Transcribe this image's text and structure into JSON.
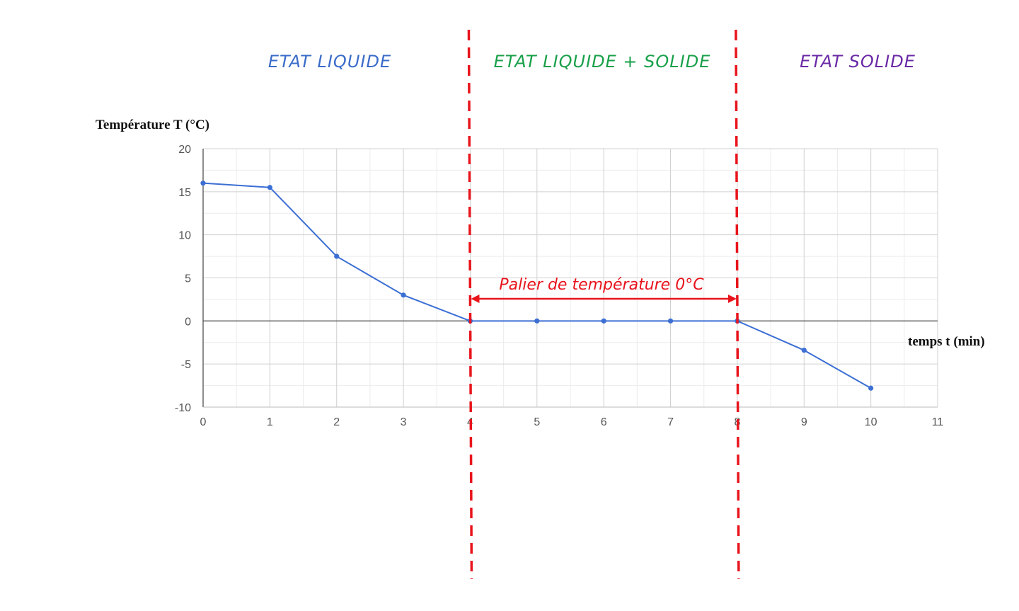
{
  "colors": {
    "series": "#3c6fd4",
    "grid_major": "#d0d0d0",
    "grid_minor": "#ececec",
    "zero_line": "#555555",
    "boundary": "#e8141c",
    "phase_liquid": "#3b6cc9",
    "phase_mix": "#19a04a",
    "phase_solid": "#6a2aa6"
  },
  "phases": {
    "liquid": "ETAT LIQUIDE",
    "mix": "ETAT LIQUIDE + SOLIDE",
    "solid": "ETAT SOLIDE"
  },
  "annotation": {
    "text": "Palier de température 0°C",
    "from_x": 4,
    "to_x": 8
  },
  "boundaries_x": [
    4,
    8
  ],
  "chart_data": {
    "type": "line",
    "title": "",
    "xlabel": "temps t (min)",
    "ylabel": "Température T (°C)",
    "xlim": [
      0,
      11
    ],
    "ylim": [
      -10,
      20
    ],
    "x_ticks": [
      "0",
      "1",
      "2",
      "3",
      "4",
      "5",
      "6",
      "7",
      "8",
      "9",
      "10",
      "11"
    ],
    "y_ticks": [
      "20",
      "15",
      "10",
      "5",
      "0",
      "-5",
      "-10"
    ],
    "grid": true,
    "series": [
      {
        "x": [
          0,
          1,
          2,
          3,
          4,
          5,
          6,
          7,
          8,
          9,
          10
        ],
        "values": [
          16,
          15.5,
          7.5,
          3,
          0,
          0,
          0,
          0,
          0,
          -3.4,
          -7.8
        ]
      }
    ]
  }
}
